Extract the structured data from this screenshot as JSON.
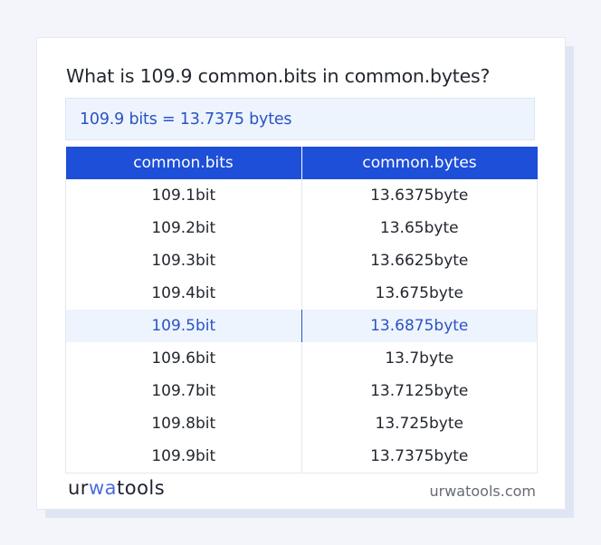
{
  "title": "What is 109.9 common.bits in common.bytes?",
  "result": "109.9 bits = 13.7375 bytes",
  "table": {
    "headers": [
      "common.bits",
      "common.bytes"
    ],
    "rows": [
      [
        "109.1bit",
        "13.6375byte"
      ],
      [
        "109.2bit",
        "13.65byte"
      ],
      [
        "109.3bit",
        "13.6625byte"
      ],
      [
        "109.4bit",
        "13.675byte"
      ],
      [
        "109.5bit",
        "13.6875byte"
      ],
      [
        "109.6bit",
        "13.7byte"
      ],
      [
        "109.7bit",
        "13.7125byte"
      ],
      [
        "109.8bit",
        "13.725byte"
      ],
      [
        "109.9bit",
        "13.7375byte"
      ]
    ],
    "highlighted_row": 4
  },
  "footer": {
    "logo": "urwatools",
    "site": "urwatools.com"
  },
  "colors": {
    "accent": "#1d4fd8",
    "highlight_text": "#2b53c4",
    "highlight_bg": "#edf4fe"
  }
}
